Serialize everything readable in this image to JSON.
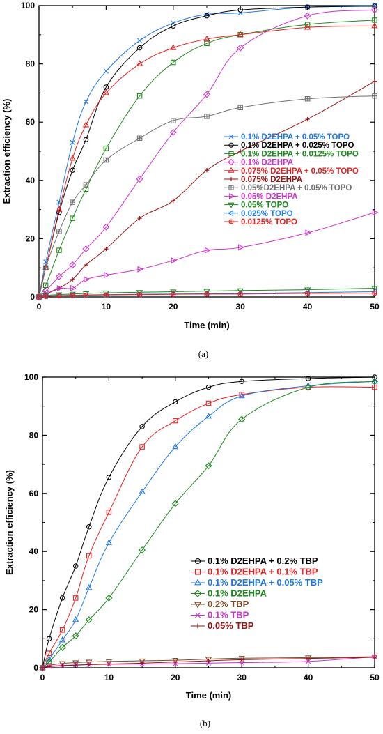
{
  "chart_data": [
    {
      "type": "line",
      "panel_label": "(a)",
      "xlabel": "Time (min)",
      "ylabel": "Extraction efficiency (%)",
      "xlim": [
        0,
        50
      ],
      "ylim": [
        0,
        100
      ],
      "xticks": [
        0,
        10,
        20,
        30,
        40,
        50
      ],
      "yticks": [
        0,
        20,
        40,
        60,
        80,
        100
      ],
      "legend_position": "center-right",
      "series": [
        {
          "name": "0.1% D2EHPA + 0.05% TOPO",
          "color": "#1f78e6",
          "marker": "x",
          "x": [
            0,
            1,
            3,
            5,
            7,
            10,
            15,
            20,
            25,
            30,
            40,
            50
          ],
          "y": [
            0,
            12,
            32.5,
            53,
            67,
            77.5,
            88,
            94,
            97,
            97.5,
            99.5,
            100
          ]
        },
        {
          "name": "0.1% D2EHPA + 0.025% TOPO",
          "color": "#000000",
          "marker": "circle",
          "x": [
            0,
            1,
            3,
            5,
            7,
            10,
            15,
            20,
            25,
            30,
            40,
            50
          ],
          "y": [
            0,
            10,
            29,
            43.5,
            54,
            72,
            85.5,
            93,
            96.5,
            98.5,
            99.5,
            99.8
          ]
        },
        {
          "name": "0.1% D2EHPA + 0.0125% TOPO",
          "color": "#1a8a1a",
          "marker": "square",
          "x": [
            0,
            1,
            3,
            5,
            7,
            10,
            15,
            20,
            25,
            30,
            40,
            50
          ],
          "y": [
            0,
            4,
            16,
            27,
            37,
            51,
            69,
            80.5,
            87,
            90,
            93.5,
            95
          ]
        },
        {
          "name": "0.1% D2EHPA",
          "color": "#cc33cc",
          "marker": "diamond",
          "x": [
            0,
            1,
            3,
            5,
            7,
            10,
            15,
            20,
            25,
            30,
            40,
            50
          ],
          "y": [
            0,
            2,
            7,
            11,
            16.5,
            24,
            40.5,
            56.5,
            69.5,
            85.5,
            96.5,
            98.5
          ]
        },
        {
          "name": "0.075% D2EHPA + 0.05% TOPO",
          "color": "#e62020",
          "marker": "triangle",
          "x": [
            0,
            1,
            3,
            5,
            7,
            10,
            15,
            20,
            25,
            30,
            40,
            50
          ],
          "y": [
            0,
            10,
            30,
            47.5,
            59,
            70,
            80,
            85.5,
            88.5,
            90,
            92.5,
            93
          ]
        },
        {
          "name": "0.075% D2EHPA",
          "color": "#9a1010",
          "marker": "plus",
          "x": [
            0,
            1,
            3,
            5,
            7,
            10,
            15,
            20,
            25,
            30,
            40,
            50
          ],
          "y": [
            0,
            1,
            3,
            6,
            11,
            16.5,
            27,
            33,
            43.5,
            50,
            61,
            74
          ]
        },
        {
          "name": "0.05%D2EHPA + 0.05% TOPO",
          "color": "#707070",
          "marker": "boxplus",
          "x": [
            0,
            1,
            3,
            5,
            7,
            10,
            15,
            20,
            25,
            30,
            40,
            50
          ],
          "y": [
            0,
            10,
            22.5,
            32.5,
            38.5,
            47,
            54.5,
            60.5,
            62,
            65,
            68,
            69
          ]
        },
        {
          "name": "0.05% D2EHPA",
          "color": "#cc33cc",
          "marker": "triangle-right",
          "x": [
            0,
            1,
            3,
            5,
            7,
            10,
            15,
            20,
            25,
            30,
            40,
            50
          ],
          "y": [
            0,
            1,
            3,
            3,
            6,
            7.5,
            9.5,
            12.5,
            16,
            17,
            22,
            29
          ]
        },
        {
          "name": "0.05% TOPO",
          "color": "#1a8a1a",
          "marker": "triangle-down",
          "x": [
            0,
            1,
            3,
            5,
            7,
            10,
            15,
            20,
            25,
            30,
            40,
            50
          ],
          "y": [
            0,
            0.5,
            0.8,
            1,
            1.2,
            1.4,
            1.6,
            1.8,
            2,
            2.2,
            2.5,
            3
          ]
        },
        {
          "name": "0.025% TOPO",
          "color": "#1f78e6",
          "marker": "triangle-left",
          "x": [
            0,
            1,
            3,
            5,
            7,
            10,
            15,
            20,
            25,
            30,
            40,
            50
          ],
          "y": [
            0,
            0.3,
            0.5,
            0.6,
            0.7,
            0.8,
            0.9,
            1,
            1.1,
            1.2,
            1.5,
            1.8
          ]
        },
        {
          "name": "0.0125% TOPO",
          "color": "#e62020",
          "marker": "circleplus",
          "x": [
            0,
            1,
            3,
            5,
            7,
            10,
            15,
            20,
            25,
            30,
            40,
            50
          ],
          "y": [
            0,
            0.2,
            0.4,
            0.5,
            0.6,
            0.7,
            0.8,
            0.9,
            1,
            1,
            1.2,
            1.3
          ]
        }
      ]
    },
    {
      "type": "line",
      "panel_label": "(b)",
      "xlabel": "Time (min)",
      "ylabel": "Extraction efficiency (%)",
      "xlim": [
        0,
        50
      ],
      "ylim": [
        0,
        100
      ],
      "xticks": [
        0,
        10,
        20,
        30,
        40,
        50
      ],
      "yticks": [
        0,
        20,
        40,
        60,
        80,
        100
      ],
      "legend_position": "center-right",
      "series": [
        {
          "name": "0.1% D2EHPA + 0.2% TBP",
          "color": "#000000",
          "marker": "circle",
          "x": [
            0,
            1,
            3,
            5,
            7,
            10,
            15,
            20,
            25,
            30,
            40,
            50
          ],
          "y": [
            0,
            10,
            24,
            35,
            48.5,
            65.5,
            83,
            91.5,
            96.5,
            98.5,
            99.5,
            100
          ]
        },
        {
          "name": "0.1% D2EHPA + 0.1% TBP",
          "color": "#e62020",
          "marker": "square",
          "x": [
            0,
            1,
            3,
            5,
            7,
            10,
            15,
            20,
            25,
            30,
            40,
            50
          ],
          "y": [
            0,
            5,
            13,
            24,
            38.5,
            53.5,
            76,
            85,
            91,
            94,
            96.5,
            96.5
          ]
        },
        {
          "name": "0.1% D2EHPA + 0.05% TBP",
          "color": "#1f78e6",
          "marker": "triangle",
          "x": [
            0,
            1,
            3,
            5,
            7,
            10,
            15,
            20,
            25,
            30,
            40,
            50
          ],
          "y": [
            0,
            3,
            9.5,
            16.5,
            27.5,
            43,
            60.5,
            76,
            86.5,
            93.5,
            97,
            98.5
          ]
        },
        {
          "name": "0.1% D2EHPA",
          "color": "#1a8a1a",
          "marker": "diamond",
          "x": [
            0,
            1,
            3,
            5,
            7,
            10,
            15,
            20,
            25,
            30,
            40,
            50
          ],
          "y": [
            0,
            2,
            7,
            11,
            16.5,
            24,
            40.5,
            56.5,
            69.5,
            85.5,
            96.5,
            98.5
          ]
        },
        {
          "name": "0.2% TBP",
          "color": "#7a4a2a",
          "marker": "triangle-down",
          "x": [
            0,
            1,
            3,
            5,
            7,
            10,
            15,
            20,
            25,
            30,
            40,
            50
          ],
          "y": [
            0,
            0.8,
            1.5,
            1.8,
            2,
            2.2,
            2.4,
            2.6,
            3,
            3.3,
            3.5,
            3.8
          ]
        },
        {
          "name": "0.1% TBP",
          "color": "#cc33cc",
          "marker": "x",
          "x": [
            0,
            1,
            3,
            5,
            7,
            10,
            15,
            20,
            25,
            30,
            40,
            50
          ],
          "y": [
            0,
            0.5,
            0.8,
            1,
            1.1,
            1.2,
            1.3,
            1.4,
            1.6,
            1.8,
            2.2,
            3.8
          ]
        },
        {
          "name": "0.05% TBP",
          "color": "#9a1010",
          "marker": "plus",
          "x": [
            0,
            1,
            3,
            5,
            7,
            10,
            15,
            20,
            25,
            30,
            40,
            50
          ],
          "y": [
            0,
            0.4,
            0.7,
            0.9,
            1.1,
            1.3,
            1.6,
            2,
            2.4,
            2.8,
            3.2,
            3.6
          ]
        }
      ]
    }
  ]
}
